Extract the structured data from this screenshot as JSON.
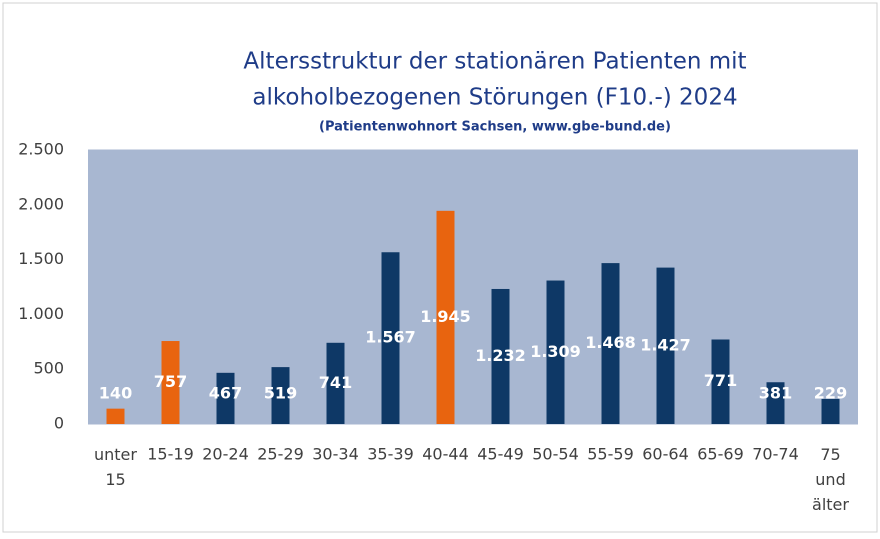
{
  "chart_data": {
    "type": "bar",
    "title": "Altersstruktur der stationären Patienten mit",
    "title_line2": "alkoholbezogenen Störungen (F10.-) 2024",
    "subtitle": "(Patientenwohnort Sachsen, www.gbe-bund.de)",
    "categories": [
      "unter 15",
      "15-19",
      "20-24",
      "25-29",
      "30-34",
      "35-39",
      "40-44",
      "45-49",
      "50-54",
      "55-59",
      "60-64",
      "65-69",
      "70-74",
      "75 und älter"
    ],
    "values": [
      140,
      757,
      467,
      519,
      741,
      1567,
      1945,
      1232,
      1309,
      1468,
      1427,
      771,
      381,
      229
    ],
    "value_labels": [
      "140",
      "757",
      "467",
      "519",
      "741",
      "1.567",
      "1.945",
      "1.232",
      "1.309",
      "1.468",
      "1.427",
      "771",
      "381",
      "229"
    ],
    "colors": [
      "#e8640f",
      "#e8640f",
      "#0e3866",
      "#0e3866",
      "#0e3866",
      "#0e3866",
      "#e8640f",
      "#0e3866",
      "#0e3866",
      "#0e3866",
      "#0e3866",
      "#0e3866",
      "#0e3866",
      "#0e3866"
    ],
    "ylim": [
      0,
      2500
    ],
    "yticks": [
      0,
      500,
      {
        "value": 1000,
        "label": "1.000"
      },
      {
        "value": 1500,
        "label": "1.500"
      },
      {
        "value": 2000,
        "label": "2.000"
      },
      {
        "value": 2500,
        "label": "2.500"
      }
    ],
    "grid": true
  }
}
